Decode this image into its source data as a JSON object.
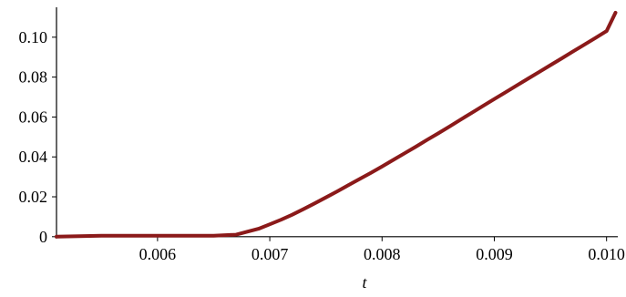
{
  "chart_data": {
    "type": "line",
    "title": "",
    "xlabel": "t",
    "ylabel": "",
    "xlim": [
      0.0051,
      0.0101
    ],
    "ylim": [
      -0.001,
      0.115
    ],
    "grid": false,
    "x_ticks": [
      {
        "value": 0.006,
        "label": "0.006"
      },
      {
        "value": 0.007,
        "label": "0.007"
      },
      {
        "value": 0.008,
        "label": "0.008"
      },
      {
        "value": 0.009,
        "label": "0.009"
      },
      {
        "value": 0.01,
        "label": "0.010"
      }
    ],
    "y_ticks": [
      {
        "value": 0,
        "label": "0"
      },
      {
        "value": 0.02,
        "label": "0.02"
      },
      {
        "value": 0.04,
        "label": "0.04"
      },
      {
        "value": 0.06,
        "label": "0.06"
      },
      {
        "value": 0.08,
        "label": "0.08"
      },
      {
        "value": 0.1,
        "label": "0.10"
      }
    ],
    "series": [
      {
        "color": "#8b1a1a",
        "x": [
          0.0051,
          0.0055,
          0.006,
          0.0065,
          0.0067,
          0.0068,
          0.0069,
          0.007,
          0.0071,
          0.0072,
          0.0073,
          0.0074,
          0.0075,
          0.0076,
          0.0077,
          0.0078,
          0.0079,
          0.008,
          0.0081,
          0.0082,
          0.0083,
          0.0084,
          0.0085,
          0.0086,
          0.0087,
          0.0088,
          0.0089,
          0.009,
          0.0091,
          0.0092,
          0.0093,
          0.0094,
          0.0095,
          0.0096,
          0.0097,
          0.0098,
          0.0099,
          0.01,
          0.01008
        ],
        "y": [
          0,
          0.0005,
          0.0005,
          0.0005,
          0.001,
          0.0025,
          0.004,
          0.0062,
          0.0085,
          0.011,
          0.0138,
          0.0167,
          0.0197,
          0.0227,
          0.0258,
          0.0289,
          0.032,
          0.0352,
          0.0385,
          0.0418,
          0.0451,
          0.0485,
          0.0518,
          0.0552,
          0.0587,
          0.0621,
          0.0656,
          0.069,
          0.0724,
          0.0758,
          0.0792,
          0.0826,
          0.086,
          0.0894,
          0.0928,
          0.0962,
          0.0996,
          0.1031,
          0.1123
        ]
      }
    ]
  }
}
